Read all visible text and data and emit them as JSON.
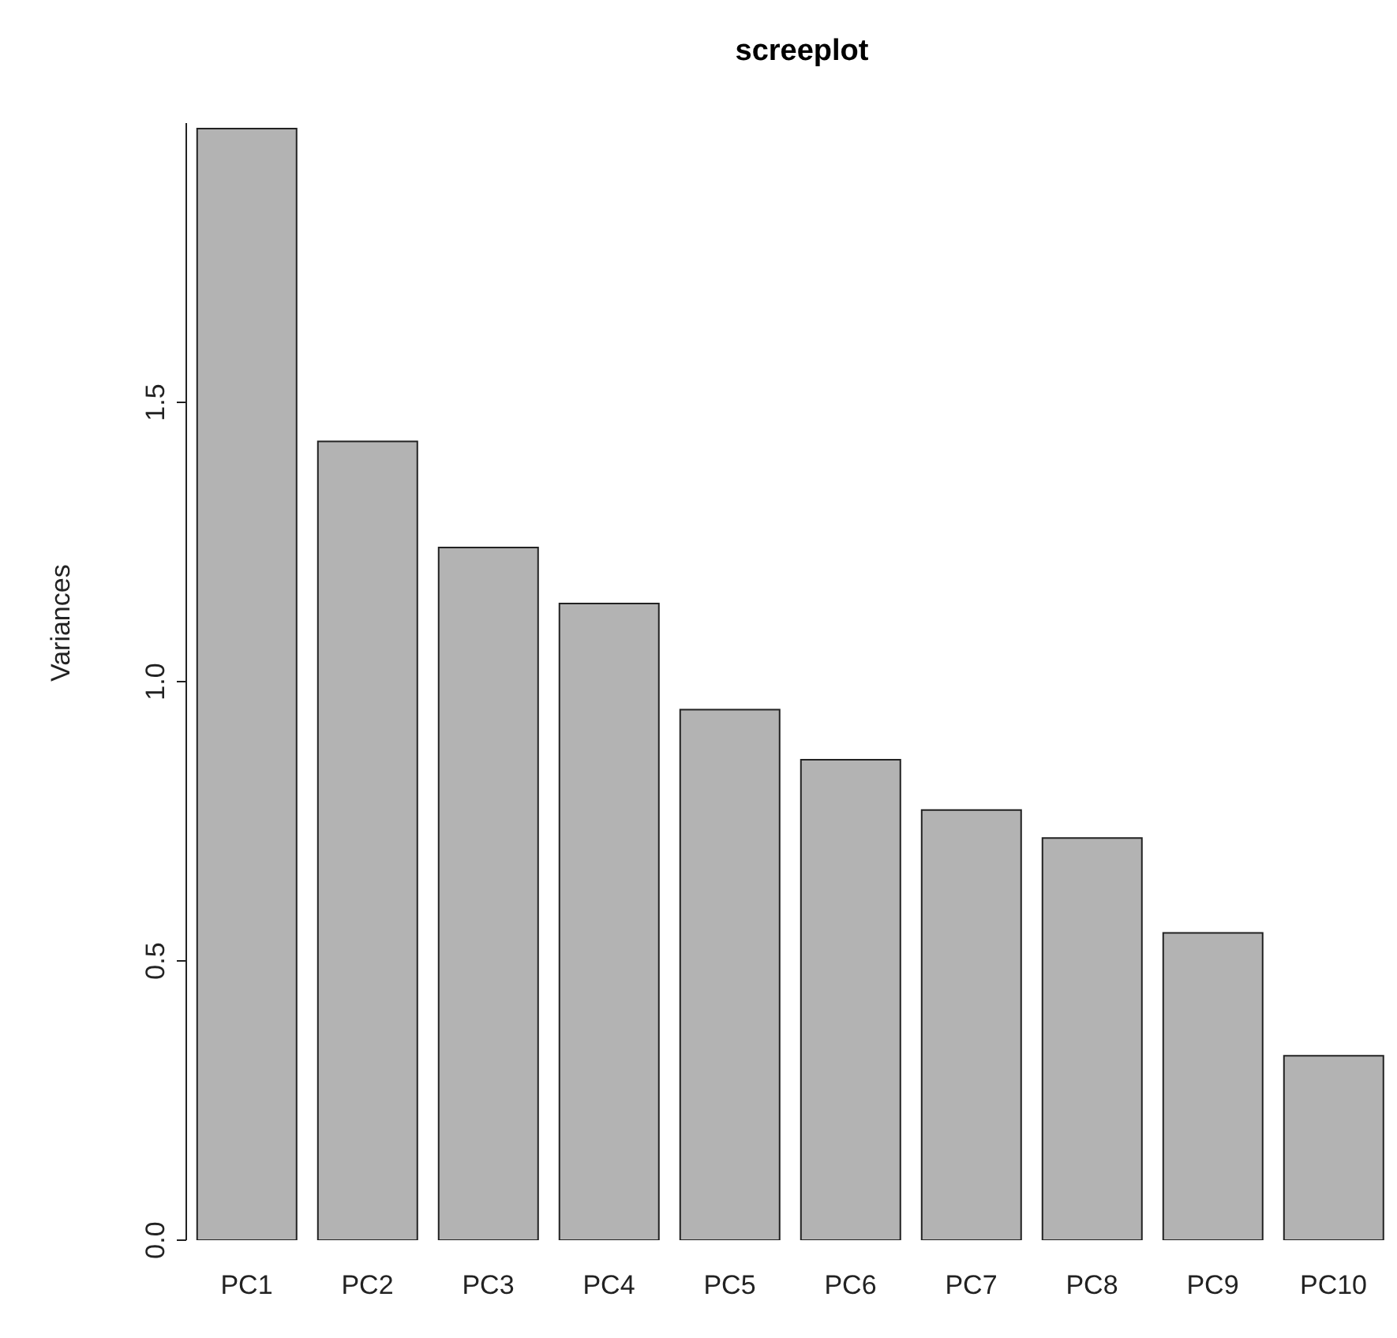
{
  "chart_data": {
    "type": "bar",
    "title": "screeplot",
    "ylabel": "Variances",
    "categories": [
      "PC1",
      "PC2",
      "PC3",
      "PC4",
      "PC5",
      "PC6",
      "PC7",
      "PC8",
      "PC9",
      "PC10"
    ],
    "values": [
      1.99,
      1.43,
      1.24,
      1.14,
      0.95,
      0.86,
      0.77,
      0.72,
      0.55,
      0.33
    ],
    "color": "#b3b3b3",
    "ylim": [
      0,
      2
    ],
    "yticks": [
      {
        "value": 0,
        "label": "0.0"
      },
      {
        "value": 0.5,
        "label": "0.5"
      },
      {
        "value": 1,
        "label": "1.0"
      },
      {
        "value": 1.5,
        "label": "1.5"
      }
    ],
    "grid": false
  }
}
